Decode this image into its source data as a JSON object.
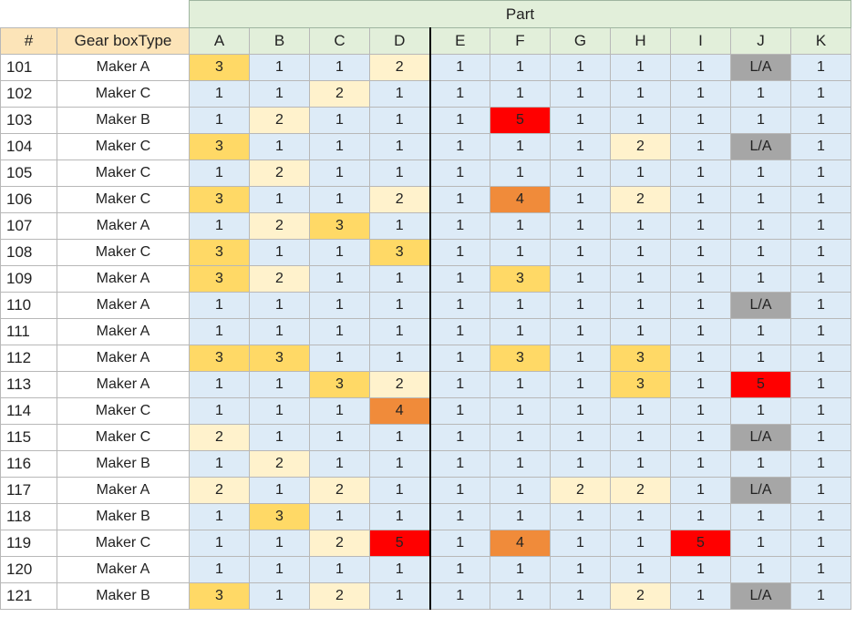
{
  "group_header": "Part",
  "headers": [
    "#",
    "Gear boxType",
    "A",
    "B",
    "C",
    "D",
    "E",
    "F",
    "G",
    "H",
    "I",
    "J",
    "K"
  ],
  "rows": [
    {
      "id": "101",
      "type": "Maker A",
      "vals": [
        "3",
        "1",
        "1",
        "2",
        "1",
        "1",
        "1",
        "1",
        "1",
        "L/A",
        "1"
      ]
    },
    {
      "id": "102",
      "type": "Maker C",
      "vals": [
        "1",
        "1",
        "2",
        "1",
        "1",
        "1",
        "1",
        "1",
        "1",
        "1",
        "1"
      ]
    },
    {
      "id": "103",
      "type": "Maker B",
      "vals": [
        "1",
        "2",
        "1",
        "1",
        "1",
        "5",
        "1",
        "1",
        "1",
        "1",
        "1"
      ]
    },
    {
      "id": "104",
      "type": "Maker C",
      "vals": [
        "3",
        "1",
        "1",
        "1",
        "1",
        "1",
        "1",
        "2",
        "1",
        "L/A",
        "1"
      ]
    },
    {
      "id": "105",
      "type": "Maker C",
      "vals": [
        "1",
        "2",
        "1",
        "1",
        "1",
        "1",
        "1",
        "1",
        "1",
        "1",
        "1"
      ]
    },
    {
      "id": "106",
      "type": "Maker C",
      "vals": [
        "3",
        "1",
        "1",
        "2",
        "1",
        "4",
        "1",
        "2",
        "1",
        "1",
        "1"
      ]
    },
    {
      "id": "107",
      "type": "Maker A",
      "vals": [
        "1",
        "2",
        "3",
        "1",
        "1",
        "1",
        "1",
        "1",
        "1",
        "1",
        "1"
      ]
    },
    {
      "id": "108",
      "type": "Maker C",
      "vals": [
        "3",
        "1",
        "1",
        "3",
        "1",
        "1",
        "1",
        "1",
        "1",
        "1",
        "1"
      ]
    },
    {
      "id": "109",
      "type": "Maker A",
      "vals": [
        "3",
        "2",
        "1",
        "1",
        "1",
        "3",
        "1",
        "1",
        "1",
        "1",
        "1"
      ]
    },
    {
      "id": "110",
      "type": "Maker A",
      "vals": [
        "1",
        "1",
        "1",
        "1",
        "1",
        "1",
        "1",
        "1",
        "1",
        "L/A",
        "1"
      ]
    },
    {
      "id": "111",
      "type": "Maker A",
      "vals": [
        "1",
        "1",
        "1",
        "1",
        "1",
        "1",
        "1",
        "1",
        "1",
        "1",
        "1"
      ]
    },
    {
      "id": "112",
      "type": "Maker A",
      "vals": [
        "3",
        "3",
        "1",
        "1",
        "1",
        "3",
        "1",
        "3",
        "1",
        "1",
        "1"
      ]
    },
    {
      "id": "113",
      "type": "Maker A",
      "vals": [
        "1",
        "1",
        "3",
        "2",
        "1",
        "1",
        "1",
        "3",
        "1",
        "5",
        "1"
      ]
    },
    {
      "id": "114",
      "type": "Maker C",
      "vals": [
        "1",
        "1",
        "1",
        "4",
        "1",
        "1",
        "1",
        "1",
        "1",
        "1",
        "1"
      ]
    },
    {
      "id": "115",
      "type": "Maker C",
      "vals": [
        "2",
        "1",
        "1",
        "1",
        "1",
        "1",
        "1",
        "1",
        "1",
        "L/A",
        "1"
      ]
    },
    {
      "id": "116",
      "type": "Maker B",
      "vals": [
        "1",
        "2",
        "1",
        "1",
        "1",
        "1",
        "1",
        "1",
        "1",
        "1",
        "1"
      ]
    },
    {
      "id": "117",
      "type": "Maker A",
      "vals": [
        "2",
        "1",
        "2",
        "1",
        "1",
        "1",
        "2",
        "2",
        "1",
        "L/A",
        "1"
      ]
    },
    {
      "id": "118",
      "type": "Maker B",
      "vals": [
        "1",
        "3",
        "1",
        "1",
        "1",
        "1",
        "1",
        "1",
        "1",
        "1",
        "1"
      ]
    },
    {
      "id": "119",
      "type": "Maker C",
      "vals": [
        "1",
        "1",
        "2",
        "5",
        "1",
        "4",
        "1",
        "1",
        "5",
        "1",
        "1"
      ]
    },
    {
      "id": "120",
      "type": "Maker A",
      "vals": [
        "1",
        "1",
        "1",
        "1",
        "1",
        "1",
        "1",
        "1",
        "1",
        "1",
        "1"
      ]
    },
    {
      "id": "121",
      "type": "Maker B",
      "vals": [
        "3",
        "1",
        "2",
        "1",
        "1",
        "1",
        "1",
        "2",
        "1",
        "L/A",
        "1"
      ]
    }
  ],
  "value_colors": {
    "1": "#ddebf7",
    "2": "#fff2cc",
    "3": "#ffd966",
    "4": "#f08b3a",
    "5": "#ff0000",
    "L/A": "#a6a6a6"
  }
}
